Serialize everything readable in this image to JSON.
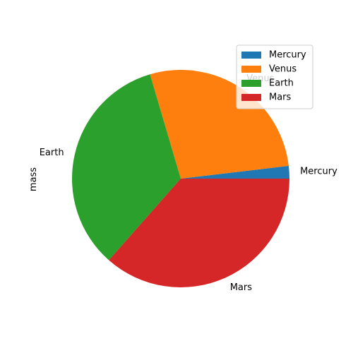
{
  "chart_data": {
    "type": "pie",
    "ylabel": "mass",
    "categories": [
      "Mercury",
      "Venus",
      "Earth",
      "Mars"
    ],
    "values": [
      0.33,
      4.87,
      5.97,
      6.42
    ],
    "colors": [
      "#1f77b4",
      "#ff7f0e",
      "#2ca02c",
      "#d62728"
    ],
    "start_angle_deg": 0,
    "direction": "counterclockwise",
    "legend": {
      "placement": "upper-right",
      "entries": [
        "Mercury",
        "Venus",
        "Earth",
        "Mars"
      ]
    }
  }
}
